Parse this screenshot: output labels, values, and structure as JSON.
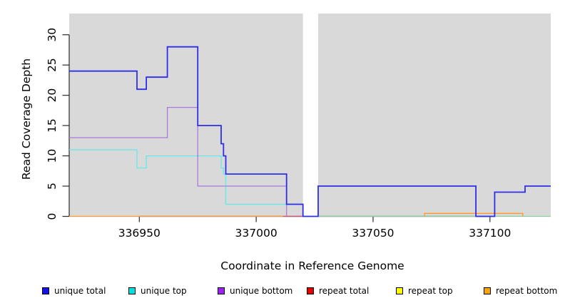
{
  "figure": {
    "xlabel": "Coordinate in Reference Genome",
    "ylabel": "Read Coverage Depth",
    "plot_bg_color": "#d9d9d9",
    "axis_color": "#2b2b2b"
  },
  "chart_data": {
    "type": "line",
    "subtype": "step-coverage-plot",
    "title": "",
    "xlabel": "Coordinate in Reference Genome",
    "ylabel": "Read Coverage Depth",
    "xlim": [
      336920,
      337126
    ],
    "ylim": [
      0,
      33.5
    ],
    "x_ticks": [
      336950,
      337000,
      337050,
      337100
    ],
    "y_ticks": [
      0,
      5,
      10,
      15,
      20,
      25,
      30
    ],
    "grid": false,
    "legend_position": "bottom",
    "gap_region": {
      "x_start": 337020,
      "x_end": 337026.5,
      "note": "white vertical band over plot; only unique-total line at depth 0 crosses it"
    },
    "draw_order": [
      "unique top",
      "unique bottom",
      "repeat total",
      "repeat top",
      "repeat bottom",
      "GAP",
      "unique total"
    ],
    "series": [
      {
        "name": "unique total",
        "color": "#2e2ee8",
        "width": 1.8,
        "segments": [
          [
            [
              336920,
              24
            ],
            [
              336949,
              24
            ],
            [
              336949,
              21
            ],
            [
              336953,
              21
            ],
            [
              336953,
              23
            ],
            [
              336962,
              23
            ],
            [
              336962,
              28
            ],
            [
              336975,
              28
            ],
            [
              336975,
              15
            ],
            [
              336985,
              15
            ],
            [
              336985,
              12
            ],
            [
              336986,
              12
            ],
            [
              336986,
              10
            ],
            [
              336987,
              10
            ],
            [
              336987,
              7
            ],
            [
              337013,
              7
            ],
            [
              337013,
              2
            ],
            [
              337020,
              2
            ],
            [
              337020,
              0
            ],
            [
              337026.5,
              0
            ],
            [
              337026.5,
              5
            ],
            [
              337094,
              5
            ],
            [
              337094,
              0
            ],
            [
              337102,
              0
            ],
            [
              337102,
              4
            ],
            [
              337115,
              4
            ],
            [
              337115,
              5
            ],
            [
              337126,
              5
            ]
          ]
        ]
      },
      {
        "name": "unique top",
        "color": "#63e9ea",
        "width": 1.3,
        "segments": [
          [
            [
              336920,
              11
            ],
            [
              336949,
              11
            ],
            [
              336949,
              8
            ],
            [
              336953,
              8
            ],
            [
              336953,
              10
            ],
            [
              336985,
              10
            ],
            [
              336985,
              8
            ],
            [
              336986,
              8
            ],
            [
              336986,
              7
            ],
            [
              336987,
              7
            ],
            [
              336987,
              2
            ],
            [
              337020,
              2
            ],
            [
              337020,
              0
            ]
          ]
        ]
      },
      {
        "name": "unique bottom",
        "color": "#a97bdc",
        "width": 1.3,
        "segments": [
          [
            [
              336920,
              13
            ],
            [
              336962,
              13
            ],
            [
              336962,
              18
            ],
            [
              336975,
              18
            ],
            [
              336975,
              5
            ],
            [
              337013,
              5
            ],
            [
              337013,
              0
            ],
            [
              337020,
              0
            ]
          ]
        ]
      },
      {
        "name": "repeat total",
        "color": "#d4546b",
        "width": 1.3,
        "segments": [
          [
            [
              337011.5,
              0
            ],
            [
              337020,
              0
            ]
          ]
        ]
      },
      {
        "name": "repeat top",
        "color": "#8fce9f",
        "width": 1.3,
        "note": "renders green-teal where it overlaps unique top at depth 0 on right half",
        "segments": [
          [
            [
              337026.5,
              0
            ],
            [
              337126,
              0
            ]
          ]
        ]
      },
      {
        "name": "repeat bottom",
        "color": "#ff9a2a",
        "width": 1.3,
        "segments": [
          [
            [
              336920,
              0
            ],
            [
              337011.5,
              0
            ]
          ],
          [
            [
              337072,
              0
            ],
            [
              337072,
              0.5
            ],
            [
              337114,
              0.5
            ],
            [
              337114,
              0
            ]
          ]
        ]
      }
    ]
  },
  "legend": {
    "items": [
      {
        "label": "unique total",
        "swatch_color": "#1414e6"
      },
      {
        "label": "unique top",
        "swatch_color": "#00e0e6"
      },
      {
        "label": "unique bottom",
        "swatch_color": "#a020f0"
      },
      {
        "label": "repeat total",
        "swatch_color": "#e60000"
      },
      {
        "label": "repeat top",
        "swatch_color": "#ffff00"
      },
      {
        "label": "repeat bottom",
        "swatch_color": "#ffa500"
      }
    ]
  }
}
